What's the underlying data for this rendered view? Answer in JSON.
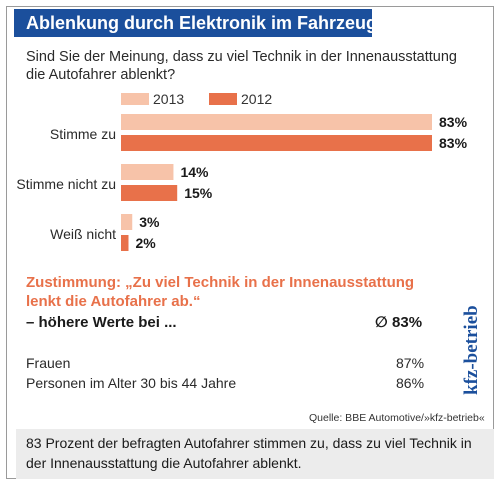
{
  "title": "Ablenkung durch Elektronik im Fahrzeug",
  "question": "Sind Sie der Meinung, dass zu viel Technik in der Innenausstattung die Autofahrer ablenkt?",
  "colors": {
    "title_bg": "#1b4f9c",
    "series_2013": "#f7c3a9",
    "series_2012": "#e8714a",
    "accent": "#e8714a"
  },
  "chart_data": {
    "type": "bar",
    "orientation": "horizontal",
    "categories": [
      "Stimme zu",
      "Stimme nicht zu",
      "Weiß nicht"
    ],
    "series": [
      {
        "name": "2013",
        "values": [
          83,
          14,
          3
        ],
        "labels": [
          "83%",
          "14%",
          "3%"
        ]
      },
      {
        "name": "2012",
        "values": [
          83,
          15,
          2
        ],
        "labels": [
          "83%",
          "15%",
          "2%"
        ]
      }
    ],
    "legend": [
      "2013",
      "2012"
    ],
    "legend_position": "top",
    "xlim": [
      0,
      83
    ],
    "unit": "%",
    "grid": false
  },
  "summary": {
    "heading": "Zustimmung: „Zu viel Technik in der Innenausstattung lenkt die Autofahrer ab.“",
    "subheading": "– höhere Werte bei ...",
    "average": "∅ 83%",
    "rows": [
      {
        "label": "Frauen",
        "value": "87%"
      },
      {
        "label": "Personen im Alter 30 bis 44 Jahre",
        "value": "86%"
      }
    ]
  },
  "source": "Quelle: BBE Automotive/»kfz-betrieb«",
  "brand": "kfz-betrieb",
  "caption": "83 Prozent der befragten Autofahrer stimmen zu, dass zu viel Technik in der Innenausstattung die Autofahrer ablenkt."
}
